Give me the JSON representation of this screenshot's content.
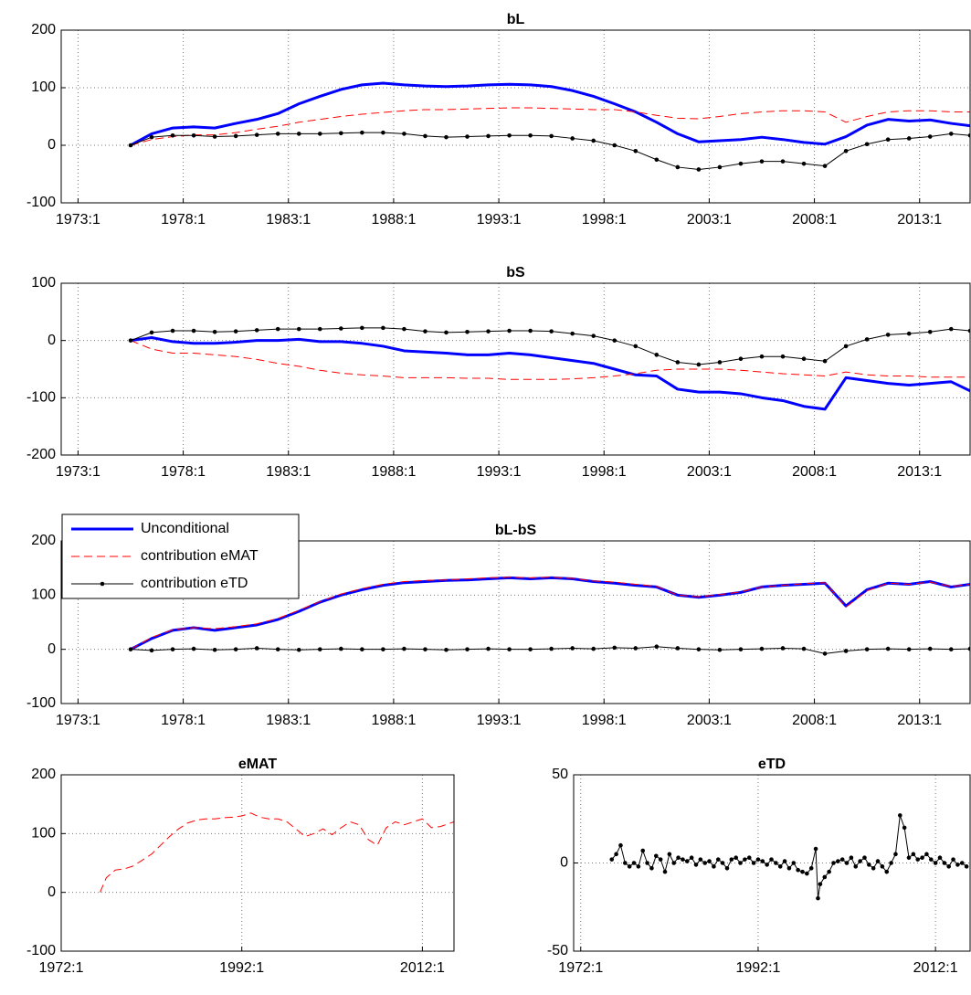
{
  "chart_data": [
    {
      "type": "line",
      "title": "bL",
      "x": [
        1975.5,
        1976.5,
        1977.5,
        1978.5,
        1979.5,
        1980.5,
        1981.5,
        1982.5,
        1983.5,
        1984.5,
        1985.5,
        1986.5,
        1987.5,
        1988.5,
        1989.5,
        1990.5,
        1991.5,
        1992.5,
        1993.5,
        1994.5,
        1995.5,
        1996.5,
        1997.5,
        1998.5,
        1999.5,
        2000.5,
        2001.5,
        2002.5,
        2003.5,
        2004.5,
        2005.5,
        2006.5,
        2007.5,
        2008.5,
        2009.5,
        2010.5,
        2011.5,
        2012.5,
        2013.5,
        2014.5,
        2015.4
      ],
      "xlim": [
        1972.2,
        2015.4
      ],
      "xticks": [
        {
          "value": 1973,
          "label": "1973:1"
        },
        {
          "value": 1978,
          "label": "1978:1"
        },
        {
          "value": 1983,
          "label": "1983:1"
        },
        {
          "value": 1988,
          "label": "1988:1"
        },
        {
          "value": 1993,
          "label": "1993:1"
        },
        {
          "value": 1998,
          "label": "1998:1"
        },
        {
          "value": 2003,
          "label": "2003:1"
        },
        {
          "value": 2008,
          "label": "2008:1"
        },
        {
          "value": 2013,
          "label": "2013:1"
        }
      ],
      "ylim": [
        -100,
        200
      ],
      "yticks": [
        -100,
        0,
        100,
        200
      ],
      "grid": true,
      "series": [
        {
          "color": "#0000ff",
          "line_width": 3,
          "line_style": "solid",
          "marker": false,
          "values": [
            0,
            20,
            30,
            32,
            30,
            38,
            45,
            55,
            72,
            85,
            97,
            105,
            108,
            105,
            103,
            102,
            103,
            105,
            106,
            105,
            102,
            95,
            85,
            72,
            58,
            40,
            20,
            6,
            8,
            10,
            14,
            10,
            5,
            2,
            15,
            35,
            45,
            42,
            44,
            38,
            34
          ]
        },
        {
          "color": "#ff0000",
          "line_width": 1,
          "line_style": "dashed",
          "marker": false,
          "values": [
            0,
            10,
            15,
            18,
            18,
            22,
            28,
            33,
            40,
            45,
            50,
            54,
            57,
            60,
            62,
            62,
            63,
            64,
            65,
            65,
            64,
            63,
            62,
            62,
            58,
            52,
            47,
            46,
            50,
            55,
            58,
            60,
            60,
            58,
            40,
            50,
            58,
            60,
            60,
            58,
            58
          ]
        },
        {
          "color": "#000000",
          "line_width": 1,
          "line_style": "solid",
          "marker": true,
          "values": [
            0,
            14,
            17,
            17,
            15,
            16,
            18,
            20,
            20,
            20,
            21,
            22,
            22,
            20,
            16,
            14,
            15,
            16,
            17,
            17,
            16,
            12,
            8,
            0,
            -10,
            -25,
            -38,
            -42,
            -38,
            -32,
            -28,
            -28,
            -32,
            -36,
            -10,
            2,
            10,
            12,
            15,
            20,
            17
          ]
        }
      ]
    },
    {
      "type": "line",
      "title": "bS",
      "x": [
        1975.5,
        1976.5,
        1977.5,
        1978.5,
        1979.5,
        1980.5,
        1981.5,
        1982.5,
        1983.5,
        1984.5,
        1985.5,
        1986.5,
        1987.5,
        1988.5,
        1989.5,
        1990.5,
        1991.5,
        1992.5,
        1993.5,
        1994.5,
        1995.5,
        1996.5,
        1997.5,
        1998.5,
        1999.5,
        2000.5,
        2001.5,
        2002.5,
        2003.5,
        2004.5,
        2005.5,
        2006.5,
        2007.5,
        2008.5,
        2009.5,
        2010.5,
        2011.5,
        2012.5,
        2013.5,
        2014.5,
        2015.4
      ],
      "xlim": [
        1972.2,
        2015.4
      ],
      "xticks": [
        {
          "value": 1973,
          "label": "1973:1"
        },
        {
          "value": 1978,
          "label": "1978:1"
        },
        {
          "value": 1983,
          "label": "1983:1"
        },
        {
          "value": 1988,
          "label": "1988:1"
        },
        {
          "value": 1993,
          "label": "1993:1"
        },
        {
          "value": 1998,
          "label": "1998:1"
        },
        {
          "value": 2003,
          "label": "2003:1"
        },
        {
          "value": 2008,
          "label": "2008:1"
        },
        {
          "value": 2013,
          "label": "2013:1"
        }
      ],
      "ylim": [
        -200,
        100
      ],
      "yticks": [
        -200,
        -100,
        0,
        100
      ],
      "grid": true,
      "series": [
        {
          "color": "#0000ff",
          "line_width": 3,
          "line_style": "solid",
          "marker": false,
          "values": [
            0,
            5,
            -2,
            -5,
            -5,
            -3,
            0,
            0,
            2,
            -2,
            -2,
            -5,
            -10,
            -18,
            -20,
            -22,
            -25,
            -25,
            -22,
            -25,
            -30,
            -35,
            -40,
            -50,
            -60,
            -62,
            -85,
            -90,
            -90,
            -93,
            -100,
            -105,
            -115,
            -120,
            -65,
            -70,
            -75,
            -78,
            -75,
            -72,
            -88
          ]
        },
        {
          "color": "#ff0000",
          "line_width": 1,
          "line_style": "dashed",
          "marker": false,
          "values": [
            0,
            -15,
            -22,
            -22,
            -25,
            -28,
            -33,
            -40,
            -45,
            -52,
            -57,
            -60,
            -62,
            -65,
            -65,
            -65,
            -66,
            -66,
            -68,
            -68,
            -68,
            -67,
            -65,
            -62,
            -58,
            -52,
            -50,
            -50,
            -50,
            -52,
            -55,
            -58,
            -60,
            -62,
            -55,
            -60,
            -62,
            -62,
            -64,
            -64,
            -64
          ]
        },
        {
          "color": "#000000",
          "line_width": 1,
          "line_style": "solid",
          "marker": true,
          "values": [
            0,
            14,
            17,
            17,
            15,
            16,
            18,
            20,
            20,
            20,
            21,
            22,
            22,
            20,
            16,
            14,
            15,
            16,
            17,
            17,
            16,
            12,
            8,
            0,
            -10,
            -25,
            -38,
            -42,
            -38,
            -32,
            -28,
            -28,
            -32,
            -36,
            -10,
            2,
            10,
            12,
            15,
            20,
            17
          ]
        }
      ]
    },
    {
      "type": "line",
      "title": "bL-bS",
      "legend": "upper left",
      "x": [
        1975.5,
        1976.5,
        1977.5,
        1978.5,
        1979.5,
        1980.5,
        1981.5,
        1982.5,
        1983.5,
        1984.5,
        1985.5,
        1986.5,
        1987.5,
        1988.5,
        1989.5,
        1990.5,
        1991.5,
        1992.5,
        1993.5,
        1994.5,
        1995.5,
        1996.5,
        1997.5,
        1998.5,
        1999.5,
        2000.5,
        2001.5,
        2002.5,
        2003.5,
        2004.5,
        2005.5,
        2006.5,
        2007.5,
        2008.5,
        2009.5,
        2010.5,
        2011.5,
        2012.5,
        2013.5,
        2014.5,
        2015.4
      ],
      "xlim": [
        1972.2,
        2015.4
      ],
      "xticks": [
        {
          "value": 1973,
          "label": "1973:1"
        },
        {
          "value": 1978,
          "label": "1978:1"
        },
        {
          "value": 1983,
          "label": "1983:1"
        },
        {
          "value": 1988,
          "label": "1988:1"
        },
        {
          "value": 1993,
          "label": "1993:1"
        },
        {
          "value": 1998,
          "label": "1998:1"
        },
        {
          "value": 2003,
          "label": "2003:1"
        },
        {
          "value": 2008,
          "label": "2008:1"
        },
        {
          "value": 2013,
          "label": "2013:1"
        }
      ],
      "ylim": [
        -100,
        200
      ],
      "yticks": [
        -100,
        0,
        100,
        200
      ],
      "grid": true,
      "series": [
        {
          "name": "Unconditional",
          "color": "#0000ff",
          "line_width": 3,
          "line_style": "solid",
          "marker": false,
          "values": [
            0,
            20,
            35,
            40,
            35,
            40,
            45,
            55,
            70,
            87,
            100,
            110,
            118,
            123,
            125,
            127,
            128,
            130,
            132,
            130,
            132,
            130,
            125,
            122,
            118,
            115,
            100,
            96,
            100,
            105,
            115,
            118,
            120,
            122,
            80,
            110,
            122,
            120,
            125,
            115,
            120
          ]
        },
        {
          "name": "contribution eMAT",
          "color": "#ff0000",
          "line_width": 1,
          "line_style": "dashed",
          "marker": false,
          "values": [
            0,
            22,
            36,
            40,
            38,
            42,
            47,
            57,
            72,
            88,
            102,
            112,
            120,
            125,
            127,
            128,
            130,
            132,
            133,
            132,
            133,
            131,
            126,
            124,
            120,
            116,
            100,
            97,
            101,
            106,
            115,
            118,
            121,
            123,
            78,
            108,
            122,
            120,
            124,
            116,
            120
          ]
        },
        {
          "name": "contribution eTD",
          "color": "#000000",
          "line_width": 1,
          "line_style": "solid",
          "marker": true,
          "values": [
            0,
            -2,
            0,
            1,
            -1,
            0,
            2,
            0,
            -1,
            0,
            1,
            0,
            0,
            1,
            0,
            -1,
            0,
            1,
            0,
            0,
            1,
            2,
            1,
            3,
            2,
            5,
            2,
            0,
            -1,
            0,
            1,
            2,
            1,
            -8,
            -3,
            0,
            1,
            0,
            1,
            0,
            1
          ]
        }
      ]
    },
    {
      "type": "line",
      "title": "eMAT",
      "x": [
        1976.3,
        1977,
        1978,
        1979,
        1980,
        1981,
        1982,
        1983,
        1984,
        1985,
        1986,
        1987,
        1988,
        1989,
        1990,
        1991,
        1992,
        1993,
        1994,
        1995,
        1996,
        1997,
        1998,
        1999,
        2000,
        2001,
        2002,
        2003,
        2004,
        2005,
        2006,
        2007,
        2008,
        2009,
        2010,
        2011,
        2012,
        2013,
        2014,
        2015.5
      ],
      "xlim": [
        1972,
        2015.5
      ],
      "xticks": [
        {
          "value": 1972,
          "label": "1972:1"
        },
        {
          "value": 1992,
          "label": "1992:1"
        },
        {
          "value": 2012,
          "label": "2012:1"
        }
      ],
      "ylim": [
        -100,
        200
      ],
      "yticks": [
        -100,
        0,
        100,
        200
      ],
      "grid": true,
      "series": [
        {
          "color": "#ff0000",
          "line_width": 1,
          "line_style": "dashed",
          "marker": false,
          "values": [
            0,
            25,
            38,
            40,
            45,
            55,
            65,
            80,
            95,
            108,
            118,
            123,
            125,
            125,
            127,
            128,
            130,
            135,
            128,
            125,
            125,
            120,
            108,
            95,
            100,
            108,
            98,
            110,
            120,
            115,
            90,
            80,
            110,
            120,
            115,
            120,
            125,
            110,
            112,
            120
          ]
        }
      ]
    },
    {
      "type": "line",
      "title": "eTD",
      "x": [
        1975.5,
        1976,
        1976.5,
        1977,
        1977.5,
        1978,
        1978.5,
        1979,
        1979.5,
        1980,
        1980.5,
        1981,
        1981.5,
        1982,
        1982.5,
        1983,
        1983.5,
        1984,
        1984.5,
        1985,
        1985.5,
        1986,
        1986.5,
        1987,
        1987.5,
        1988,
        1988.5,
        1989,
        1989.5,
        1990,
        1990.5,
        1991,
        1991.5,
        1992,
        1992.5,
        1993,
        1993.5,
        1994,
        1994.5,
        1995,
        1995.5,
        1996,
        1996.5,
        1997,
        1997.5,
        1998,
        1998.5,
        1998.75,
        1999,
        1999.5,
        2000,
        2000.5,
        2001,
        2001.5,
        2002,
        2002.5,
        2003,
        2003.5,
        2004,
        2004.5,
        2005,
        2005.5,
        2006,
        2006.5,
        2007,
        2007.5,
        2008,
        2008.5,
        2009,
        2009.5,
        2010,
        2010.5,
        2011,
        2011.5,
        2012,
        2012.5,
        2013,
        2013.5,
        2014,
        2014.5,
        2015,
        2015.5
      ],
      "xlim": [
        1971.2,
        2015.9
      ],
      "xticks": [
        {
          "value": 1972,
          "label": "1972:1"
        },
        {
          "value": 1992,
          "label": "1992:1"
        },
        {
          "value": 2012,
          "label": "2012:1"
        }
      ],
      "ylim": [
        -50,
        50
      ],
      "yticks": [
        -50,
        0,
        50
      ],
      "grid": true,
      "series": [
        {
          "color": "#000000",
          "line_width": 1,
          "line_style": "solid",
          "marker": true,
          "values": [
            2,
            5,
            10,
            0,
            -2,
            0,
            -2,
            7,
            0,
            -3,
            4,
            2,
            -5,
            5,
            0,
            3,
            2,
            1,
            3,
            -1,
            2,
            0,
            1,
            -2,
            2,
            0,
            -3,
            2,
            3,
            0,
            2,
            3,
            0,
            2,
            1,
            -1,
            2,
            0,
            -2,
            1,
            -3,
            0,
            -4,
            -5,
            -6,
            -3,
            8,
            -20,
            -12,
            -8,
            -5,
            0,
            1,
            2,
            0,
            3,
            -2,
            1,
            3,
            -1,
            -3,
            1,
            -2,
            -5,
            0,
            5,
            27,
            20,
            3,
            5,
            2,
            3,
            5,
            2,
            0,
            3,
            0,
            -2,
            2,
            -1,
            0,
            -2
          ]
        }
      ]
    }
  ]
}
